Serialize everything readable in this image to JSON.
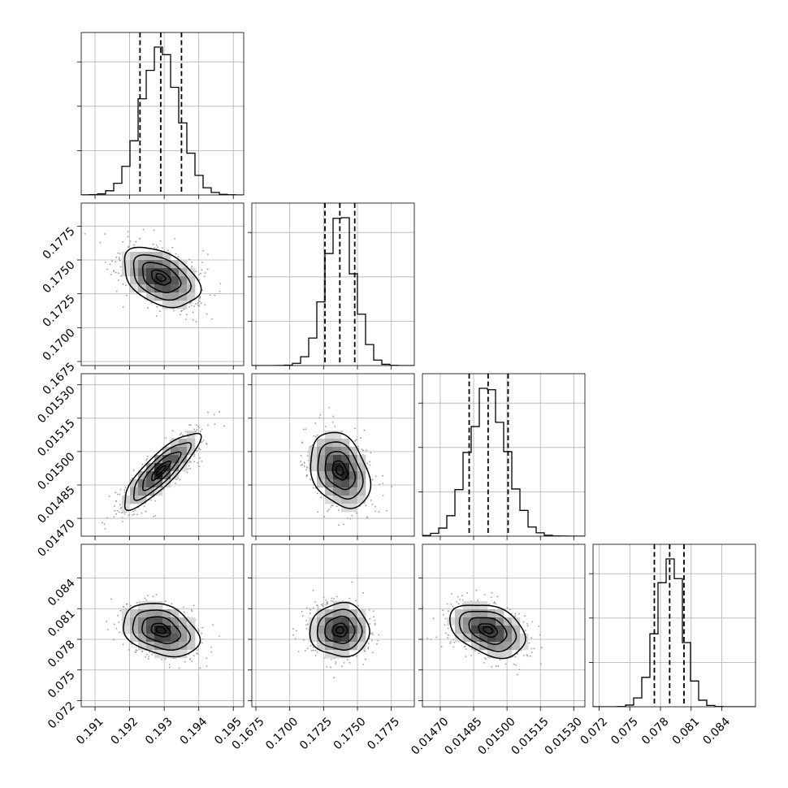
{
  "chart_data": {
    "type": "corner",
    "grid": true,
    "parameters": [
      {
        "mean": 0.1929,
        "sd": 0.00055,
        "quantiles": [
          0.1923,
          0.1929,
          0.1935
        ],
        "range": [
          0.1906,
          0.1953
        ],
        "ticks": [
          0.191,
          0.192,
          0.193,
          0.194,
          0.195
        ],
        "tick_labels": [
          "0.191",
          "0.192",
          "0.193",
          "0.194",
          "0.195"
        ]
      },
      {
        "mean": 0.1737,
        "sd": 0.0011,
        "quantiles": [
          0.1726,
          0.1737,
          0.1748
        ],
        "range": [
          0.1672,
          0.1792
        ],
        "ticks": [
          0.1675,
          0.17,
          0.1725,
          0.175,
          0.1775
        ],
        "tick_labels": [
          "0.1675",
          "0.1700",
          "0.1725",
          "0.1750",
          "0.1775"
        ]
      },
      {
        "mean": 0.014915,
        "sd": 8.5e-05,
        "quantiles": [
          0.01483,
          0.014915,
          0.015005
        ],
        "range": [
          0.01462,
          0.01535
        ],
        "ticks": [
          0.0147,
          0.01485,
          0.015,
          0.01515,
          0.0153
        ],
        "tick_labels": [
          "0.01470",
          "0.01485",
          "0.01500",
          "0.01515",
          "0.01530"
        ]
      },
      {
        "mean": 0.0789,
        "sd": 0.0013,
        "quantiles": [
          0.0774,
          0.0789,
          0.0803
        ],
        "range": [
          0.0714,
          0.0873
        ],
        "ticks": [
          0.072,
          0.075,
          0.078,
          0.081,
          0.084
        ],
        "tick_labels": [
          "0.072",
          "0.075",
          "0.078",
          "0.081",
          "0.084"
        ]
      }
    ],
    "correlations": [
      [
        1.0,
        -0.4,
        0.85,
        -0.3
      ],
      [
        -0.4,
        1.0,
        -0.3,
        0.0
      ],
      [
        0.85,
        -0.3,
        1.0,
        -0.35
      ],
      [
        -0.3,
        0.0,
        -0.35,
        1.0
      ]
    ],
    "contour_levels_sigma": [
      0.5,
      1.0,
      1.5,
      2.0
    ],
    "colors": {
      "axes": "#000000",
      "grid": "#b0b0b0",
      "scatter": "#9a9a9a"
    }
  }
}
